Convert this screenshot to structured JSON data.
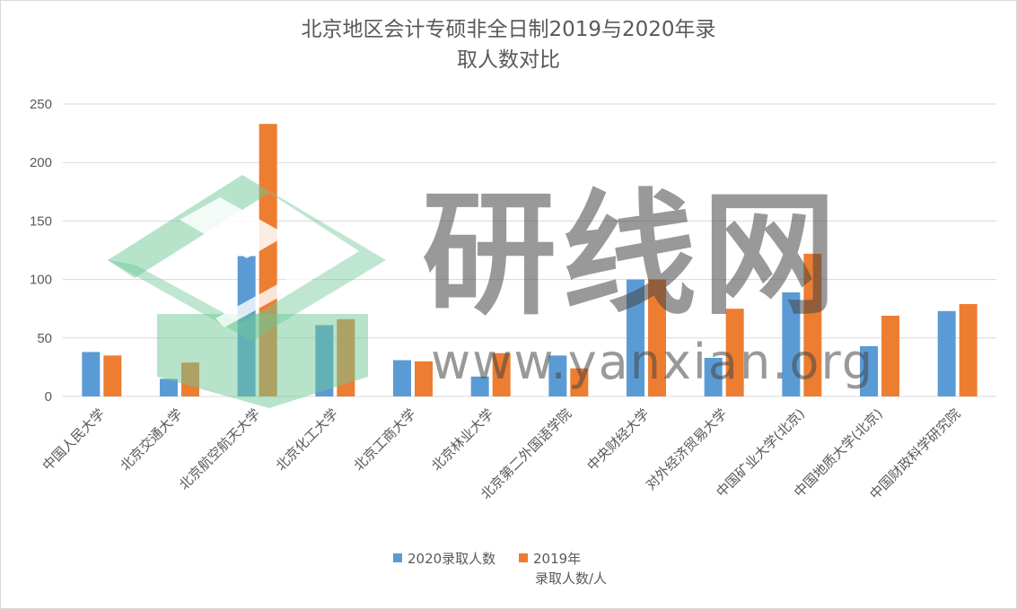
{
  "chart_data": {
    "type": "bar",
    "title_line1": "北京地区会计专硕非全日制2019与2020年录",
    "title_line2": "取人数对比",
    "categories": [
      "中国人民大学",
      "北京交通大学",
      "北京航空航天大学",
      "北京化工大学",
      "北京工商大学",
      "北京林业大学",
      "北京第二外国语学院",
      "中央财经大学",
      "对外经济贸易大学",
      "中国矿业大学(北京)",
      "中国地质大学(北京)",
      "中国财政科学研究院"
    ],
    "series": [
      {
        "name": "2020录取人数",
        "color": "#5b9bd5",
        "values": [
          38,
          15,
          120,
          61,
          31,
          17,
          35,
          100,
          33,
          89,
          43,
          73
        ]
      },
      {
        "name_line1": "2019年",
        "name_line2": "录取人数/人",
        "color": "#ed7d31",
        "values": [
          35,
          29,
          233,
          66,
          30,
          37,
          24,
          100,
          75,
          122,
          69,
          79
        ]
      }
    ],
    "ylim": [
      0,
      250
    ],
    "yticks": [
      "0",
      "50",
      "100",
      "150",
      "200",
      "250"
    ],
    "grid": true,
    "legend_position": "bottom"
  },
  "watermark": {
    "logo": "yanxian-logo",
    "text_cn": "研线网",
    "text_url": "www.yanxian.org"
  }
}
